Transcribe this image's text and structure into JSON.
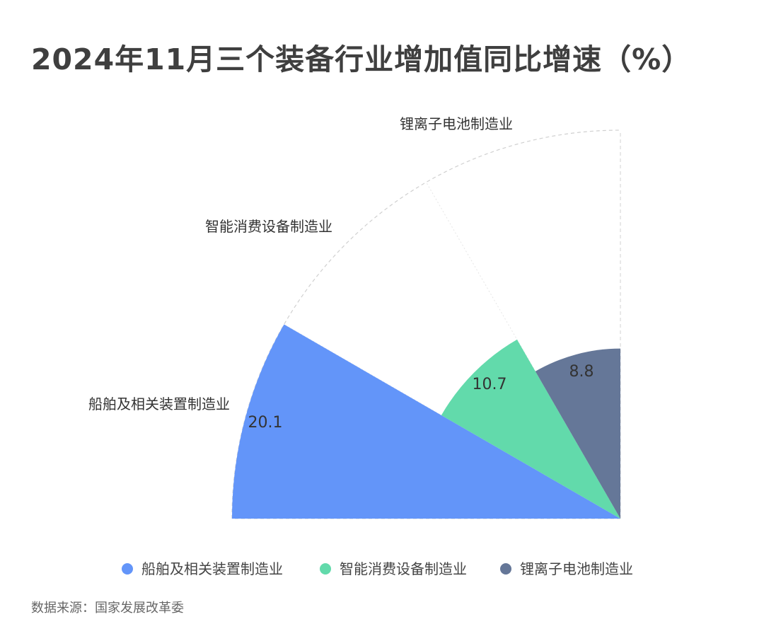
{
  "title": "2024年11月三个装备行业增加值同比增速（%）",
  "source": "数据来源：国家发展改革委",
  "chart_data": {
    "type": "rose",
    "title": "2024年11月三个装备行业增加值同比增速（%）",
    "categories": [
      "船舶及相关装置制造业",
      "智能消费设备制造业",
      "锂离子电池制造业"
    ],
    "values": [
      20.1,
      10.7,
      8.8
    ],
    "colors": [
      "#6395F9",
      "#62DAAB",
      "#657798"
    ],
    "angle_range_deg": [
      180,
      90
    ],
    "radius_max": 20.1,
    "legend": [
      "船舶及相关装置制造业",
      "智能消费设备制造业",
      "锂离子电池制造业"
    ],
    "legend_position": "bottom",
    "grid": true
  }
}
